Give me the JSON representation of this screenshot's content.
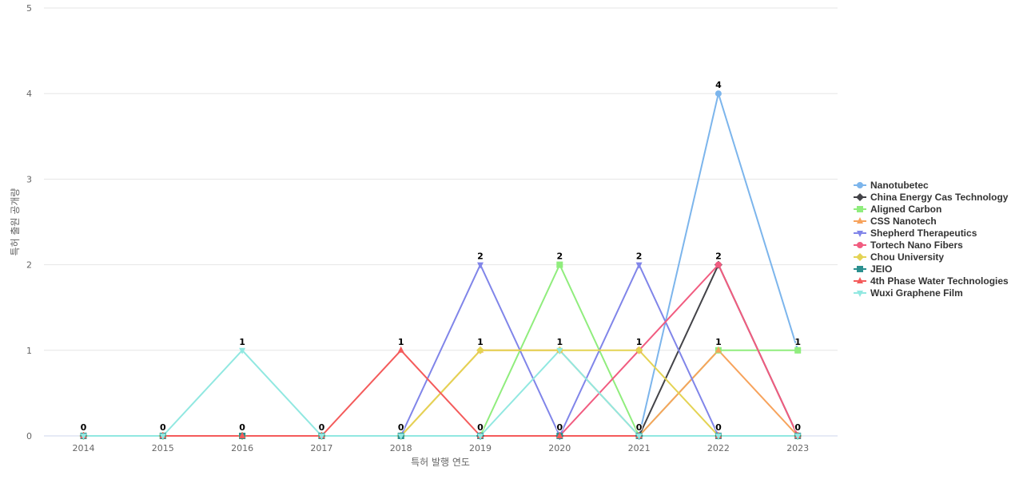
{
  "chart_data": {
    "type": "line",
    "xlabel": "특허 발행 연도",
    "ylabel": "특허 출원 공개량",
    "ylim": [
      0,
      5
    ],
    "y_ticks": [
      "0",
      "1",
      "2",
      "3",
      "4",
      "5"
    ],
    "categories": [
      "2014",
      "2015",
      "2016",
      "2017",
      "2018",
      "2019",
      "2020",
      "2021",
      "2022",
      "2023"
    ],
    "grid": true,
    "legend_position": "right",
    "series": [
      {
        "name": "Nanotubetec",
        "color": "#7cb5ec",
        "marker": "circle",
        "values": [
          0,
          0,
          0,
          0,
          0,
          0,
          0,
          0,
          4,
          1
        ]
      },
      {
        "name": "China Energy Cas Technology",
        "color": "#434348",
        "marker": "diamond",
        "values": [
          0,
          0,
          0,
          0,
          0,
          0,
          0,
          0,
          2,
          0
        ]
      },
      {
        "name": "Aligned Carbon",
        "color": "#90ed7d",
        "marker": "square",
        "values": [
          0,
          0,
          0,
          0,
          0,
          0,
          2,
          0,
          1,
          1
        ]
      },
      {
        "name": "CSS Nanotech",
        "color": "#f7a35c",
        "marker": "triangle",
        "values": [
          0,
          0,
          0,
          0,
          0,
          1,
          1,
          0,
          1,
          0
        ]
      },
      {
        "name": "Shepherd Therapeutics",
        "color": "#8085e9",
        "marker": "triangle-down",
        "values": [
          0,
          0,
          0,
          0,
          0,
          2,
          0,
          2,
          0,
          0
        ]
      },
      {
        "name": "Tortech Nano Fibers",
        "color": "#f15c80",
        "marker": "circle",
        "values": [
          0,
          0,
          0,
          0,
          0,
          0,
          0,
          1,
          2,
          0
        ]
      },
      {
        "name": "Chou University",
        "color": "#e4d354",
        "marker": "diamond",
        "values": [
          0,
          0,
          0,
          0,
          0,
          1,
          1,
          1,
          0,
          0
        ]
      },
      {
        "name": "JEIO",
        "color": "#2b908f",
        "marker": "square",
        "values": [
          0,
          0,
          0,
          0,
          0,
          0,
          0,
          0,
          0,
          0
        ]
      },
      {
        "name": "4th Phase Water Technologies",
        "color": "#f45b5b",
        "marker": "triangle",
        "values": [
          0,
          0,
          0,
          0,
          1,
          0,
          0,
          0,
          0,
          0
        ]
      },
      {
        "name": "Wuxi Graphene Film",
        "color": "#91e8e1",
        "marker": "triangle-down",
        "values": [
          0,
          0,
          1,
          0,
          0,
          0,
          1,
          0,
          0,
          0
        ]
      }
    ],
    "data_labels": [
      {
        "category": "2014",
        "label": "0",
        "value": 0
      },
      {
        "category": "2015",
        "label": "0",
        "value": 0
      },
      {
        "category": "2016",
        "label": "1",
        "value": 1
      },
      {
        "category": "2016",
        "label": "0",
        "value": 0
      },
      {
        "category": "2017",
        "label": "0",
        "value": 0
      },
      {
        "category": "2018",
        "label": "1",
        "value": 1
      },
      {
        "category": "2018",
        "label": "0",
        "value": 0
      },
      {
        "category": "2019",
        "label": "2",
        "value": 2
      },
      {
        "category": "2019",
        "label": "1",
        "value": 1
      },
      {
        "category": "2019",
        "label": "0",
        "value": 0
      },
      {
        "category": "2020",
        "label": "2",
        "value": 2
      },
      {
        "category": "2020",
        "label": "1",
        "value": 1
      },
      {
        "category": "2020",
        "label": "0",
        "value": 0
      },
      {
        "category": "2021",
        "label": "2",
        "value": 2
      },
      {
        "category": "2021",
        "label": "1",
        "value": 1
      },
      {
        "category": "2021",
        "label": "0",
        "value": 0
      },
      {
        "category": "2022",
        "label": "4",
        "value": 4
      },
      {
        "category": "2022",
        "label": "2",
        "value": 2
      },
      {
        "category": "2022",
        "label": "1",
        "value": 1
      },
      {
        "category": "2022",
        "label": "0",
        "value": 0
      },
      {
        "category": "2023",
        "label": "1",
        "value": 1
      },
      {
        "category": "2023",
        "label": "0",
        "value": 0
      }
    ]
  }
}
